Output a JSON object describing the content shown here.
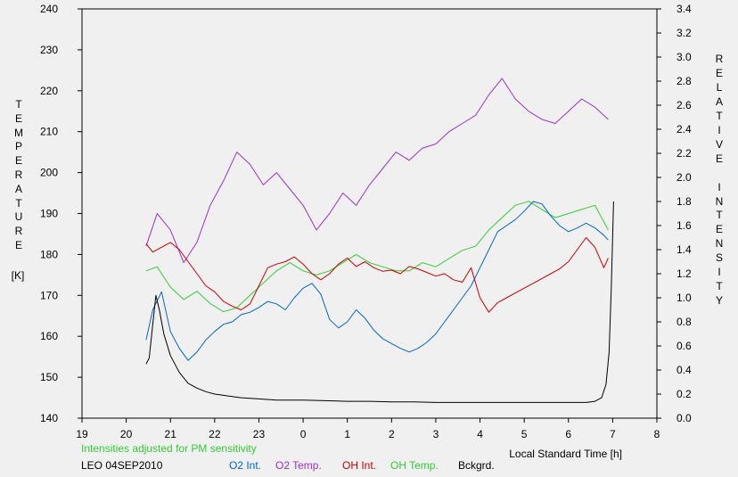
{
  "chart_data": {
    "type": "line",
    "title": "",
    "site_date": "LEO 04SEP2010",
    "note": "Intensities adjusted for PM sensitivity",
    "xlabel": "Local Standard Time [h]",
    "ylabel_left_letters": [
      "T",
      "E",
      "M",
      "P",
      "E",
      "R",
      "A",
      "T",
      "U",
      "R",
      "E"
    ],
    "ylabel_left_unit": "[K]",
    "ylabel_right_letters": [
      "R",
      "E",
      "L",
      "A",
      "T",
      "I",
      "V",
      "E",
      "",
      "I",
      "N",
      "T",
      "E",
      "N",
      "S",
      "I",
      "T",
      "Y"
    ],
    "x_ticks": [
      "19",
      "20",
      "21",
      "22",
      "23",
      "0",
      "1",
      "2",
      "3",
      "4",
      "5",
      "6",
      "7",
      "8"
    ],
    "xlim": [
      19,
      32
    ],
    "ylim_left": [
      140,
      240
    ],
    "ylim_right": [
      0.0,
      3.4
    ],
    "y_left_ticks": [
      "140",
      "150",
      "160",
      "170",
      "180",
      "190",
      "200",
      "210",
      "220",
      "230",
      "240"
    ],
    "y_right_ticks": [
      "0.0",
      "0.2",
      "0.4",
      "0.6",
      "0.8",
      "1.0",
      "1.2",
      "1.4",
      "1.6",
      "1.8",
      "2.0",
      "2.2",
      "2.4",
      "2.6",
      "2.8",
      "3.0",
      "3.2",
      "3.4"
    ],
    "grid": false,
    "legend_position": "bottom",
    "series": [
      {
        "name": "O2 Int.",
        "axis": "right",
        "color": "#0066cc",
        "x": [
          20.45,
          20.6,
          20.8,
          21.0,
          21.2,
          21.4,
          21.6,
          21.8,
          22.0,
          22.2,
          22.4,
          22.6,
          22.8,
          23.0,
          23.2,
          23.4,
          23.6,
          23.8,
          24.0,
          24.2,
          24.4,
          24.6,
          24.8,
          25.0,
          25.2,
          25.4,
          25.6,
          25.8,
          26.0,
          26.2,
          26.4,
          26.6,
          26.8,
          27.0,
          27.2,
          27.4,
          27.6,
          27.8,
          28.0,
          28.2,
          28.4,
          28.6,
          28.8,
          29.0,
          29.2,
          29.4,
          29.6,
          29.8,
          30.0,
          30.2,
          30.4,
          30.6,
          30.8,
          30.9
        ],
        "y": [
          0.65,
          0.9,
          1.05,
          0.72,
          0.58,
          0.48,
          0.55,
          0.65,
          0.72,
          0.78,
          0.8,
          0.86,
          0.88,
          0.92,
          0.97,
          0.95,
          0.9,
          1.0,
          1.08,
          1.12,
          1.03,
          0.82,
          0.75,
          0.8,
          0.9,
          0.83,
          0.73,
          0.66,
          0.62,
          0.58,
          0.55,
          0.58,
          0.63,
          0.7,
          0.8,
          0.9,
          1.0,
          1.1,
          1.25,
          1.4,
          1.55,
          1.6,
          1.65,
          1.72,
          1.8,
          1.78,
          1.68,
          1.6,
          1.55,
          1.58,
          1.62,
          1.58,
          1.52,
          1.48
        ]
      },
      {
        "name": "O2 Temp.",
        "axis": "left",
        "color": "#9933cc",
        "x": [
          20.45,
          20.7,
          21.0,
          21.3,
          21.6,
          21.9,
          22.2,
          22.5,
          22.8,
          23.1,
          23.4,
          23.7,
          24.0,
          24.3,
          24.6,
          24.9,
          25.2,
          25.5,
          25.8,
          26.1,
          26.4,
          26.7,
          27.0,
          27.3,
          27.6,
          27.9,
          28.2,
          28.5,
          28.8,
          29.1,
          29.4,
          29.7,
          30.0,
          30.3,
          30.6,
          30.9
        ],
        "y": [
          182,
          190,
          186,
          178,
          183,
          192,
          198,
          205,
          202,
          197,
          200,
          196,
          192,
          186,
          190,
          195,
          192,
          197,
          201,
          205,
          203,
          206,
          207,
          210,
          212,
          214,
          219,
          223,
          218,
          215,
          213,
          212,
          215,
          218,
          216,
          213
        ]
      },
      {
        "name": "OH Int.",
        "axis": "right",
        "color": "#cc0000",
        "x": [
          20.45,
          20.6,
          20.8,
          21.0,
          21.2,
          21.4,
          21.6,
          21.8,
          22.0,
          22.2,
          22.4,
          22.6,
          22.8,
          23.0,
          23.2,
          23.4,
          23.6,
          23.8,
          24.0,
          24.2,
          24.4,
          24.6,
          24.8,
          25.0,
          25.2,
          25.4,
          25.6,
          25.8,
          26.0,
          26.2,
          26.4,
          26.6,
          26.8,
          27.0,
          27.2,
          27.4,
          27.6,
          27.8,
          28.0,
          28.2,
          28.4,
          28.6,
          28.8,
          29.0,
          29.2,
          29.4,
          29.6,
          29.8,
          30.0,
          30.2,
          30.4,
          30.6,
          30.8,
          30.9
        ],
        "y": [
          1.45,
          1.38,
          1.42,
          1.46,
          1.4,
          1.3,
          1.2,
          1.1,
          1.05,
          0.97,
          0.93,
          0.9,
          0.95,
          1.1,
          1.25,
          1.28,
          1.3,
          1.34,
          1.28,
          1.2,
          1.15,
          1.2,
          1.28,
          1.33,
          1.26,
          1.3,
          1.25,
          1.22,
          1.23,
          1.2,
          1.26,
          1.24,
          1.21,
          1.18,
          1.2,
          1.15,
          1.13,
          1.25,
          1.0,
          0.88,
          0.96,
          1.0,
          1.04,
          1.08,
          1.12,
          1.16,
          1.2,
          1.24,
          1.3,
          1.4,
          1.5,
          1.42,
          1.25,
          1.33
        ]
      },
      {
        "name": "OH Temp.",
        "axis": "left",
        "color": "#33cc33",
        "x": [
          20.45,
          20.7,
          21.0,
          21.3,
          21.6,
          21.9,
          22.2,
          22.5,
          22.8,
          23.1,
          23.4,
          23.7,
          24.0,
          24.3,
          24.6,
          24.9,
          25.2,
          25.5,
          25.8,
          26.1,
          26.4,
          26.7,
          27.0,
          27.3,
          27.6,
          27.9,
          28.2,
          28.5,
          28.8,
          29.1,
          29.4,
          29.7,
          30.0,
          30.3,
          30.6,
          30.9
        ],
        "y": [
          176,
          177,
          172,
          169,
          171,
          168,
          166,
          167,
          170,
          173,
          176,
          178,
          176,
          175,
          176,
          178,
          180,
          178,
          177,
          176,
          176,
          178,
          177,
          179,
          181,
          182,
          186,
          189,
          192,
          193,
          191,
          189,
          190,
          191,
          192,
          186
        ]
      },
      {
        "name": "Bckgrd.",
        "axis": "right",
        "color": "#000000",
        "x": [
          20.45,
          20.52,
          20.6,
          20.67,
          20.75,
          20.85,
          21.0,
          21.2,
          21.4,
          21.6,
          21.8,
          22.0,
          22.2,
          22.4,
          22.6,
          22.8,
          23.0,
          23.4,
          24.0,
          24.5,
          25.0,
          25.5,
          26.0,
          26.5,
          27.0,
          27.5,
          28.0,
          28.5,
          29.0,
          29.5,
          30.0,
          30.4,
          30.6,
          30.75,
          30.85,
          30.92,
          30.97,
          31.02
        ],
        "y": [
          0.45,
          0.5,
          0.78,
          1.02,
          0.9,
          0.7,
          0.52,
          0.38,
          0.29,
          0.25,
          0.22,
          0.2,
          0.19,
          0.18,
          0.17,
          0.165,
          0.16,
          0.15,
          0.15,
          0.145,
          0.14,
          0.14,
          0.135,
          0.135,
          0.13,
          0.13,
          0.13,
          0.13,
          0.13,
          0.13,
          0.13,
          0.13,
          0.14,
          0.17,
          0.28,
          0.55,
          1.1,
          1.8
        ]
      }
    ]
  }
}
